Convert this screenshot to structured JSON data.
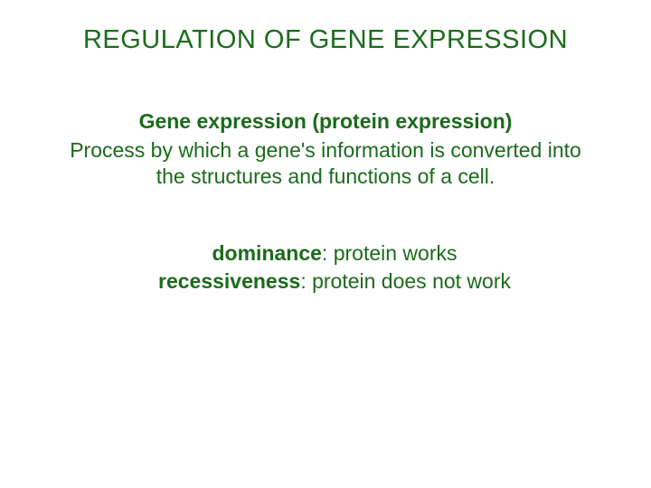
{
  "colors": {
    "text": "#1a6b1a",
    "background": "#ffffff"
  },
  "typography": {
    "title_fontsize": 29,
    "body_fontsize": 23,
    "font_family": "Arial"
  },
  "title": "REGULATION OF GENE EXPRESSION",
  "subtitle": "Gene expression (protein expression)",
  "body": "Process by which a gene's information is converted into the structures and functions of a cell.",
  "definitions": [
    {
      "term": "dominance",
      "desc": ":  protein works"
    },
    {
      "term": "recessiveness",
      "desc": ":  protein does not work"
    }
  ]
}
